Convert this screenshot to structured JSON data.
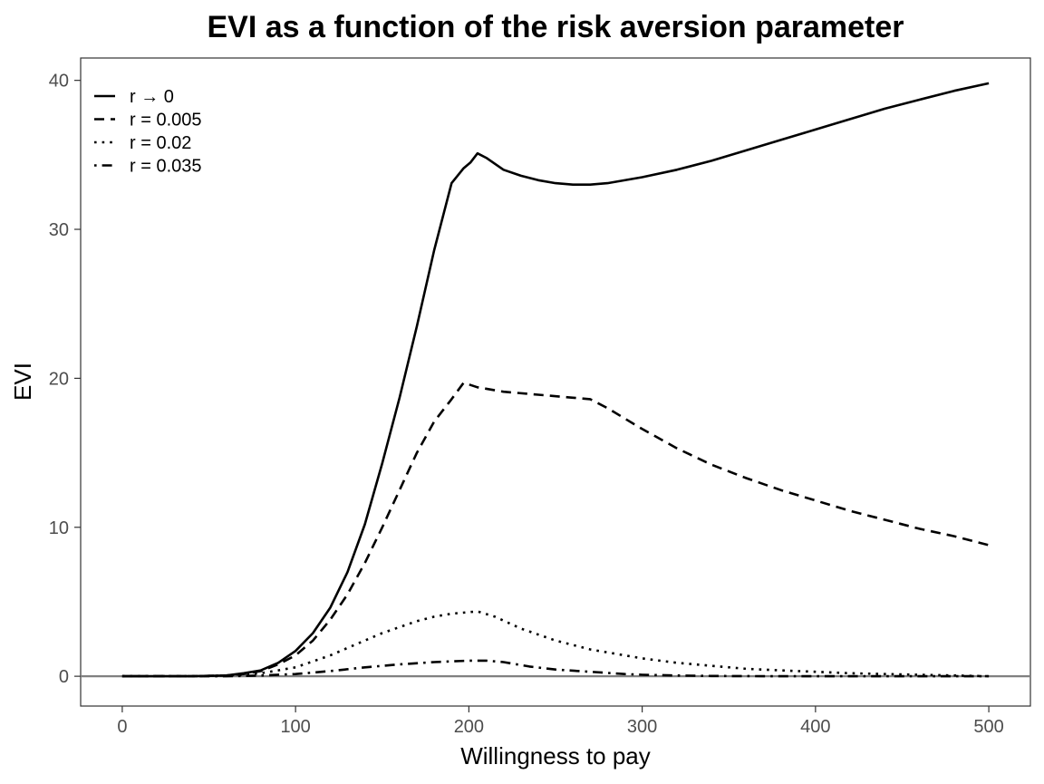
{
  "chart_data": {
    "type": "line",
    "title": "EVI as a function of the risk aversion parameter",
    "xlabel": "Willingness to pay",
    "ylabel": "EVI",
    "xlim": [
      -24,
      524
    ],
    "ylim": [
      -2,
      41.5
    ],
    "xticks": [
      0,
      100,
      200,
      300,
      400,
      500
    ],
    "yticks": [
      0,
      10,
      20,
      30,
      40
    ],
    "grid": false,
    "legend_position": "top-left",
    "reference_line": {
      "y": 0,
      "color": "#808080"
    },
    "series": [
      {
        "name": "r → 0",
        "dash": "solid",
        "points": [
          [
            0,
            0
          ],
          [
            20,
            0
          ],
          [
            40,
            0
          ],
          [
            60,
            0.05
          ],
          [
            70,
            0.2
          ],
          [
            80,
            0.4
          ],
          [
            90,
            0.9
          ],
          [
            100,
            1.7
          ],
          [
            110,
            2.9
          ],
          [
            120,
            4.6
          ],
          [
            130,
            7.0
          ],
          [
            140,
            10.2
          ],
          [
            150,
            14.3
          ],
          [
            160,
            18.7
          ],
          [
            170,
            23.5
          ],
          [
            180,
            28.6
          ],
          [
            190,
            33.1
          ],
          [
            197,
            34.1
          ],
          [
            201,
            34.5
          ],
          [
            205,
            35.1
          ],
          [
            210,
            34.8
          ],
          [
            220,
            34.0
          ],
          [
            230,
            33.6
          ],
          [
            240,
            33.3
          ],
          [
            250,
            33.1
          ],
          [
            260,
            33.0
          ],
          [
            270,
            33.0
          ],
          [
            280,
            33.1
          ],
          [
            300,
            33.5
          ],
          [
            320,
            34.0
          ],
          [
            340,
            34.6
          ],
          [
            360,
            35.3
          ],
          [
            380,
            36.0
          ],
          [
            400,
            36.7
          ],
          [
            420,
            37.4
          ],
          [
            440,
            38.1
          ],
          [
            460,
            38.7
          ],
          [
            480,
            39.3
          ],
          [
            500,
            39.8
          ]
        ]
      },
      {
        "name": "r = 0.005",
        "dash": "dashed",
        "points": [
          [
            0,
            0
          ],
          [
            20,
            0
          ],
          [
            40,
            0
          ],
          [
            60,
            0.05
          ],
          [
            70,
            0.15
          ],
          [
            80,
            0.35
          ],
          [
            90,
            0.8
          ],
          [
            100,
            1.4
          ],
          [
            110,
            2.4
          ],
          [
            120,
            3.8
          ],
          [
            130,
            5.5
          ],
          [
            140,
            7.6
          ],
          [
            150,
            10.0
          ],
          [
            160,
            12.5
          ],
          [
            170,
            15.0
          ],
          [
            180,
            17.1
          ],
          [
            190,
            18.6
          ],
          [
            197,
            19.7
          ],
          [
            205,
            19.4
          ],
          [
            220,
            19.1
          ],
          [
            240,
            18.9
          ],
          [
            260,
            18.7
          ],
          [
            270,
            18.6
          ],
          [
            280,
            18.0
          ],
          [
            300,
            16.6
          ],
          [
            320,
            15.3
          ],
          [
            340,
            14.2
          ],
          [
            360,
            13.3
          ],
          [
            380,
            12.5
          ],
          [
            400,
            11.8
          ],
          [
            420,
            11.1
          ],
          [
            440,
            10.5
          ],
          [
            460,
            9.9
          ],
          [
            480,
            9.4
          ],
          [
            500,
            8.8
          ]
        ]
      },
      {
        "name": "r = 0.02",
        "dash": "dotted",
        "points": [
          [
            0,
            0
          ],
          [
            40,
            0
          ],
          [
            60,
            0.05
          ],
          [
            70,
            0.1
          ],
          [
            80,
            0.2
          ],
          [
            90,
            0.4
          ],
          [
            100,
            0.6
          ],
          [
            110,
            1.0
          ],
          [
            120,
            1.4
          ],
          [
            130,
            1.9
          ],
          [
            140,
            2.4
          ],
          [
            150,
            2.9
          ],
          [
            160,
            3.3
          ],
          [
            170,
            3.7
          ],
          [
            180,
            4.0
          ],
          [
            190,
            4.2
          ],
          [
            200,
            4.3
          ],
          [
            205,
            4.35
          ],
          [
            215,
            4.0
          ],
          [
            230,
            3.2
          ],
          [
            250,
            2.4
          ],
          [
            270,
            1.8
          ],
          [
            290,
            1.4
          ],
          [
            300,
            1.2
          ],
          [
            320,
            0.9
          ],
          [
            340,
            0.7
          ],
          [
            360,
            0.5
          ],
          [
            380,
            0.4
          ],
          [
            400,
            0.3
          ],
          [
            420,
            0.2
          ],
          [
            440,
            0.15
          ],
          [
            460,
            0.1
          ],
          [
            480,
            0.05
          ],
          [
            500,
            0.0
          ]
        ]
      },
      {
        "name": "r = 0.035",
        "dash": "dotdash",
        "points": [
          [
            0,
            0
          ],
          [
            60,
            0
          ],
          [
            80,
            0.05
          ],
          [
            100,
            0.15
          ],
          [
            120,
            0.35
          ],
          [
            140,
            0.6
          ],
          [
            160,
            0.8
          ],
          [
            180,
            0.95
          ],
          [
            200,
            1.05
          ],
          [
            210,
            1.05
          ],
          [
            220,
            0.95
          ],
          [
            235,
            0.65
          ],
          [
            250,
            0.45
          ],
          [
            270,
            0.3
          ],
          [
            290,
            0.15
          ],
          [
            300,
            0.1
          ],
          [
            320,
            0.05
          ],
          [
            340,
            0.02
          ],
          [
            380,
            0.0
          ],
          [
            500,
            0.0
          ]
        ]
      }
    ]
  }
}
